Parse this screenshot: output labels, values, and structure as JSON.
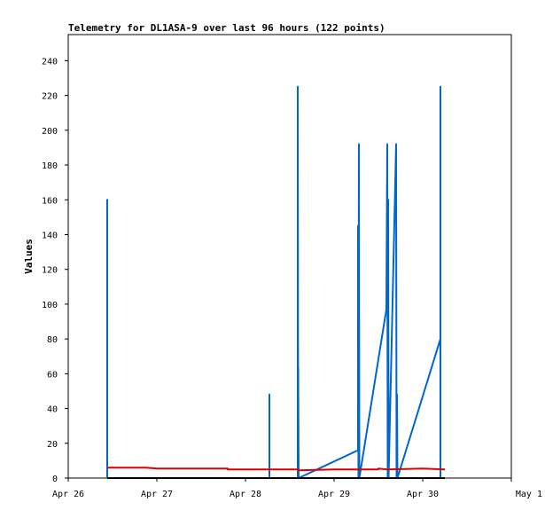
{
  "chart_data": {
    "type": "line",
    "title": "Telemetry for DL1ASA-9 over last 96 hours (122 points)",
    "xlabel": "",
    "ylabel": "Values",
    "xlim": [
      "Apr 26",
      "May 1"
    ],
    "x_ticks": [
      "Apr 26",
      "Apr 27",
      "Apr 28",
      "Apr 29",
      "Apr 30",
      "May 1"
    ],
    "ylim": [
      0,
      255
    ],
    "y_ticks": [
      0,
      20,
      40,
      60,
      80,
      100,
      120,
      140,
      160,
      180,
      200,
      220,
      240
    ],
    "grid": false,
    "legend": "none",
    "series": [
      {
        "color": "#0066cc",
        "points": [
          [
            0.44,
            0
          ],
          [
            0.44,
            160
          ],
          [
            0.44,
            0
          ],
          [
            2.27,
            0
          ],
          [
            2.27,
            48
          ],
          [
            2.27,
            0
          ],
          [
            2.59,
            0
          ],
          [
            2.59,
            225
          ],
          [
            2.595,
            0
          ],
          [
            2.595,
            64
          ],
          [
            2.6,
            0
          ],
          [
            3.27,
            16
          ],
          [
            3.27,
            145
          ],
          [
            3.275,
            0
          ],
          [
            3.28,
            192
          ],
          [
            3.285,
            0
          ],
          [
            3.59,
            97
          ],
          [
            3.6,
            192
          ],
          [
            3.605,
            0
          ],
          [
            3.61,
            160
          ],
          [
            3.615,
            0
          ],
          [
            3.7,
            192
          ],
          [
            3.705,
            0
          ],
          [
            3.71,
            48
          ],
          [
            3.715,
            0
          ],
          [
            4.2,
            80
          ],
          [
            4.2,
            225
          ],
          [
            4.2,
            0
          ]
        ]
      },
      {
        "color": "#dd0000",
        "points": [
          [
            0.44,
            6
          ],
          [
            0.88,
            6
          ],
          [
            1.0,
            5.5
          ],
          [
            1.8,
            5.5
          ],
          [
            1.8,
            5
          ],
          [
            2.6,
            5
          ],
          [
            2.6,
            4.5
          ],
          [
            3.0,
            5
          ],
          [
            3.5,
            5
          ],
          [
            3.5,
            5.5
          ],
          [
            3.6,
            5
          ],
          [
            4.0,
            5.5
          ],
          [
            4.25,
            5
          ]
        ]
      },
      {
        "color": "#000000",
        "points": [
          [
            0.44,
            0
          ],
          [
            4.25,
            0
          ]
        ]
      }
    ]
  }
}
